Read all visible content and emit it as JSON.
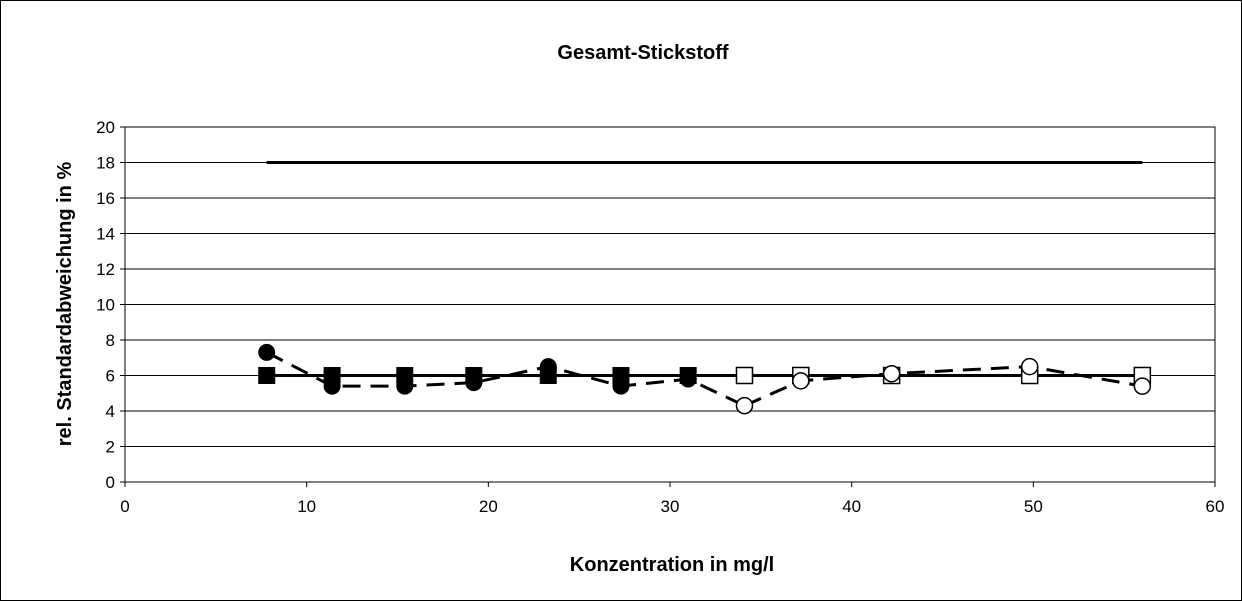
{
  "chart_data": {
    "type": "line",
    "title": "Gesamt-Stickstoff",
    "xlabel": "Konzentration in mg/l",
    "ylabel": "rel. Standardabweichung in %",
    "xlim": [
      0,
      60
    ],
    "ylim": [
      0,
      20
    ],
    "x_ticks": [
      "0",
      "10",
      "20",
      "30",
      "40",
      "50",
      "60"
    ],
    "y_ticks": [
      "0",
      "2",
      "4",
      "6",
      "8",
      "10",
      "12",
      "14",
      "16",
      "18",
      "20"
    ],
    "grid": "horizontal",
    "legend": "none",
    "series": [
      {
        "style": "solid-thick",
        "marker": "none",
        "color": "#000000",
        "x": [
          7.8,
          56.0
        ],
        "y": [
          18,
          18
        ]
      },
      {
        "style": "solid",
        "marker": "square-filled",
        "color": "#000000",
        "x": [
          7.8,
          11.4,
          15.4,
          19.2,
          23.3,
          27.3,
          31.0,
          34.1
        ],
        "y": [
          6,
          6,
          6,
          6,
          6,
          6,
          6,
          6
        ]
      },
      {
        "style": "solid",
        "marker": "square-open",
        "color": "#000000",
        "x": [
          34.1,
          37.2,
          42.2,
          49.8,
          56.0
        ],
        "y": [
          6,
          6,
          6,
          6,
          6
        ]
      },
      {
        "style": "dashed",
        "marker": "circle-filled",
        "color": "#000000",
        "x": [
          7.8,
          11.4,
          15.4,
          19.2,
          23.3,
          27.3,
          31.0,
          34.1
        ],
        "y": [
          7.3,
          5.4,
          5.4,
          5.6,
          6.5,
          5.4,
          5.8,
          4.3
        ]
      },
      {
        "style": "dashed",
        "marker": "circle-open",
        "color": "#000000",
        "x": [
          34.1,
          37.2,
          42.2,
          49.8,
          56.0
        ],
        "y": [
          4.3,
          5.7,
          6.1,
          6.5,
          5.4
        ]
      }
    ]
  }
}
